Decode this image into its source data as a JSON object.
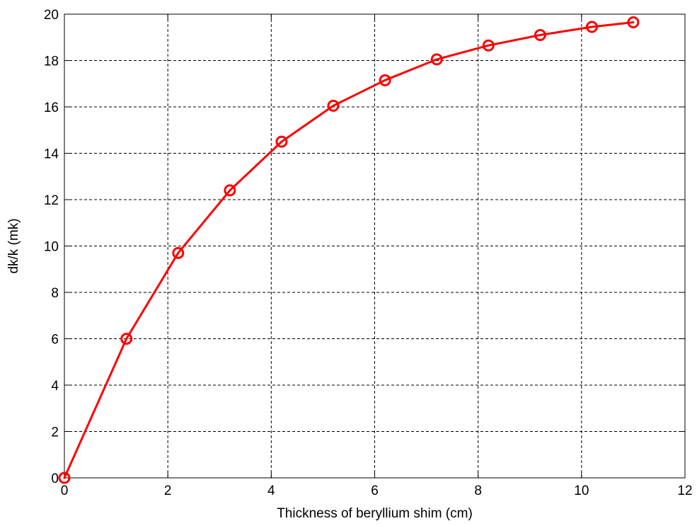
{
  "chart_data": {
    "type": "line",
    "title": "",
    "xlabel": "Thickness of beryllium shim (cm)",
    "ylabel": "dk/k (mk)",
    "xlim": [
      0,
      12
    ],
    "ylim": [
      0,
      20
    ],
    "xticks": [
      0,
      2,
      4,
      6,
      8,
      10,
      12
    ],
    "yticks": [
      0,
      2,
      4,
      6,
      8,
      10,
      12,
      14,
      16,
      18,
      20
    ],
    "grid": true,
    "grid_style": "dashed",
    "series": [
      {
        "color": "#ff0000",
        "marker": "circle",
        "x": [
          0,
          1.2,
          2.2,
          3.2,
          4.2,
          5.2,
          6.2,
          7.2,
          8.2,
          9.2,
          10.2,
          11.0
        ],
        "y": [
          0,
          6.0,
          9.7,
          12.4,
          14.5,
          16.05,
          17.15,
          18.05,
          18.65,
          19.1,
          19.45,
          19.65
        ]
      }
    ]
  }
}
